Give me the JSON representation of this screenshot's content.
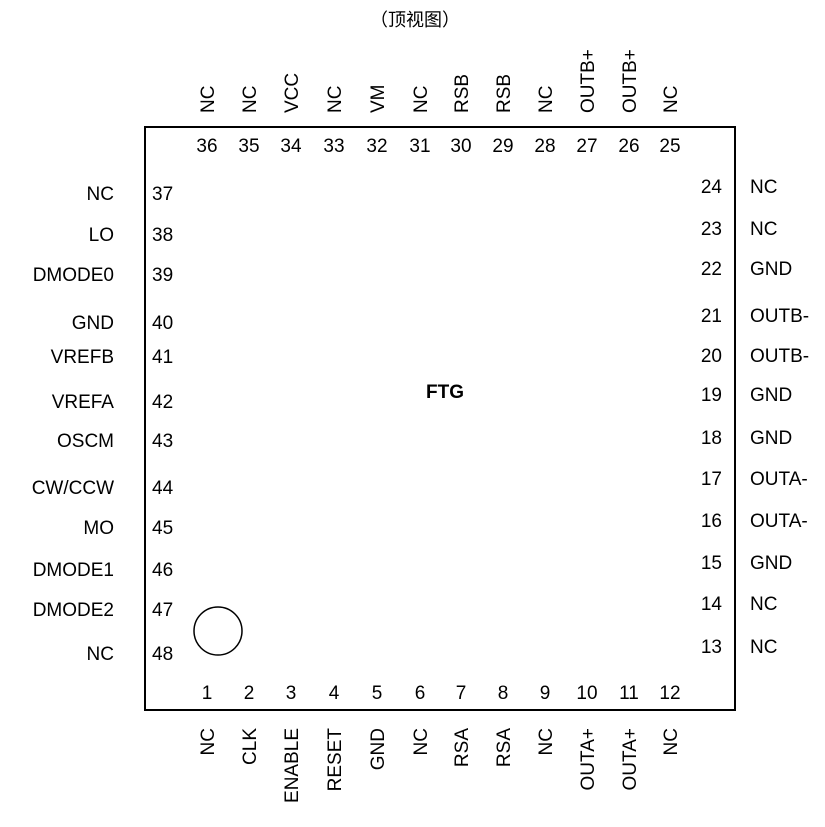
{
  "view_label": "（顶视图）",
  "chip_label": "FTG",
  "pins": {
    "top": [
      {
        "num": "36",
        "name": "NC"
      },
      {
        "num": "35",
        "name": "NC"
      },
      {
        "num": "34",
        "name": "VCC"
      },
      {
        "num": "33",
        "name": "NC"
      },
      {
        "num": "32",
        "name": "VM"
      },
      {
        "num": "31",
        "name": "NC"
      },
      {
        "num": "30",
        "name": "RSB"
      },
      {
        "num": "29",
        "name": "RSB"
      },
      {
        "num": "28",
        "name": "NC"
      },
      {
        "num": "27",
        "name": "OUTB+"
      },
      {
        "num": "26",
        "name": "OUTB+"
      },
      {
        "num": "25",
        "name": "NC"
      }
    ],
    "bottom": [
      {
        "num": "1",
        "name": "NC"
      },
      {
        "num": "2",
        "name": "CLK"
      },
      {
        "num": "3",
        "name": "ENABLE"
      },
      {
        "num": "4",
        "name": "RESET"
      },
      {
        "num": "5",
        "name": "GND"
      },
      {
        "num": "6",
        "name": "NC"
      },
      {
        "num": "7",
        "name": "RSA"
      },
      {
        "num": "8",
        "name": "RSA"
      },
      {
        "num": "9",
        "name": "NC"
      },
      {
        "num": "10",
        "name": "OUTA+"
      },
      {
        "num": "11",
        "name": "OUTA+"
      },
      {
        "num": "12",
        "name": "NC"
      }
    ],
    "left": [
      {
        "num": "37",
        "name": "NC"
      },
      {
        "num": "38",
        "name": "LO"
      },
      {
        "num": "39",
        "name": "DMODE0"
      },
      {
        "num": "40",
        "name": "GND"
      },
      {
        "num": "41",
        "name": "VREFB"
      },
      {
        "num": "42",
        "name": "VREFA"
      },
      {
        "num": "43",
        "name": "OSCM"
      },
      {
        "num": "44",
        "name": "CW/CCW"
      },
      {
        "num": "45",
        "name": "MO"
      },
      {
        "num": "46",
        "name": "DMODE1"
      },
      {
        "num": "47",
        "name": "DMODE2"
      },
      {
        "num": "48",
        "name": "NC"
      }
    ],
    "right": [
      {
        "num": "24",
        "name": "NC"
      },
      {
        "num": "23",
        "name": "NC"
      },
      {
        "num": "22",
        "name": "GND"
      },
      {
        "num": "21",
        "name": "OUTB-"
      },
      {
        "num": "20",
        "name": "OUTB-"
      },
      {
        "num": "19",
        "name": "GND"
      },
      {
        "num": "18",
        "name": "GND"
      },
      {
        "num": "17",
        "name": "OUTA-"
      },
      {
        "num": "16",
        "name": "OUTA-"
      },
      {
        "num": "15",
        "name": "GND"
      },
      {
        "num": "14",
        "name": "NC"
      },
      {
        "num": "13",
        "name": "NC"
      }
    ]
  }
}
